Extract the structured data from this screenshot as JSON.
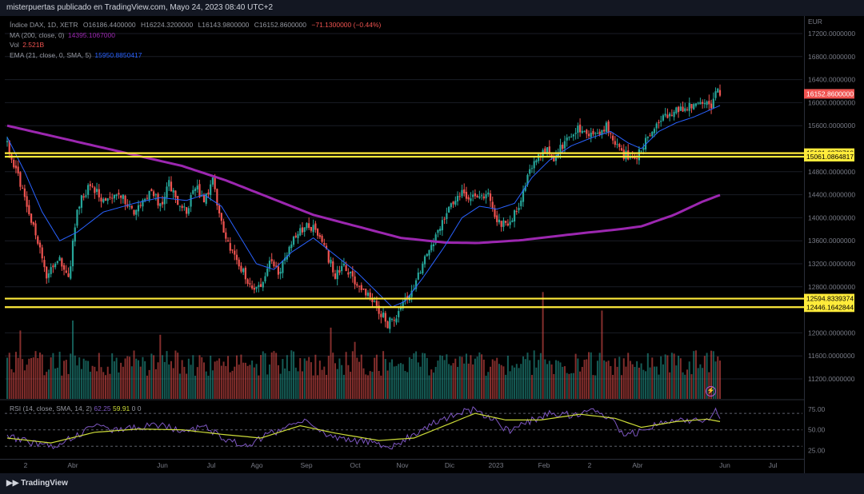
{
  "header": {
    "publisher_text": "misterpuertas publicado en TradingView.com, Mayo 24, 2023 08:40 UTC+2"
  },
  "legend": {
    "symbol": "Índice DAX, 1D, XETR",
    "open": "O16186.4400000",
    "high": "H16224.3200000",
    "low": "L16143.9800000",
    "close": "C16152.8600000",
    "change": "−71.1300000 (−0.44%)",
    "ma_label": "MA (200, close, 0)",
    "ma_value": "14395.1067000",
    "vol_label": "Vol",
    "vol_value": "2.521B",
    "ema_label": "EMA (21, close, 0, SMA, 5)",
    "ema_value": "15950.8850417"
  },
  "rsi_legend": {
    "label": "RSI (14, close, SMA, 14, 2)",
    "v1": "62.25",
    "v2": "59.91",
    "v3": "0",
    "v4": "0"
  },
  "footer": {
    "logo_text": "TradingView"
  },
  "colors": {
    "up": "#26a69a",
    "down": "#ef5350",
    "ma200": "#9c27b0",
    "ema21": "#2962ff",
    "level": "#ffeb3b",
    "rsi": "#7e57c2",
    "rsi_ma": "#cddc39"
  },
  "chart_data": [
    {
      "type": "candlestick",
      "title": "Índice DAX, 1D, XETR",
      "currency": "EUR",
      "ylim": [
        10950,
        17350
      ],
      "price_ticks": [
        17200,
        16800,
        16400,
        16000,
        15600,
        14800,
        14400,
        14000,
        13600,
        13200,
        12800,
        12000,
        11600,
        11200
      ],
      "price_tick_labels": [
        "17200.0000000",
        "16800.0000000",
        "16400.0000000",
        "16000.0000000",
        "15600.0000000",
        "14800.0000000",
        "14400.0000000",
        "14000.0000000",
        "13600.0000000",
        "13200.0000000",
        "12800.0000000",
        "12000.0000000",
        "11600.0000000",
        "11200.0000000"
      ],
      "time_labels": [
        "2",
        "Abr",
        "Jun",
        "Jul",
        "Ago",
        "Sep",
        "Oct",
        "Nov",
        "Dic",
        "2023",
        "Feb",
        "2",
        "Abr",
        "Jun",
        "Jul"
      ],
      "last_price": "16152.8600000",
      "levels": [
        {
          "value": 15121.6378719,
          "label": "15121.6378719"
        },
        {
          "value": 15061.0864817,
          "label": "15061.0864817"
        },
        {
          "value": 12594.8339374,
          "label": "12594.8339374"
        },
        {
          "value": 12446.1642844,
          "label": "12446.1642844"
        }
      ],
      "close_anchors": [
        [
          0,
          15300
        ],
        [
          10,
          14100
        ],
        [
          18,
          13000
        ],
        [
          24,
          13300
        ],
        [
          28,
          12900
        ],
        [
          32,
          14200
        ],
        [
          38,
          14600
        ],
        [
          44,
          14300
        ],
        [
          52,
          14400
        ],
        [
          58,
          14100
        ],
        [
          66,
          14500
        ],
        [
          70,
          14200
        ],
        [
          74,
          14600
        ],
        [
          78,
          14250
        ],
        [
          82,
          14100
        ],
        [
          86,
          14550
        ],
        [
          90,
          14300
        ],
        [
          94,
          14650
        ],
        [
          98,
          13900
        ],
        [
          102,
          13500
        ],
        [
          106,
          13200
        ],
        [
          110,
          12900
        ],
        [
          116,
          12750
        ],
        [
          120,
          13300
        ],
        [
          124,
          13000
        ],
        [
          128,
          13400
        ],
        [
          132,
          13700
        ],
        [
          138,
          13900
        ],
        [
          142,
          13700
        ],
        [
          146,
          13400
        ],
        [
          150,
          13000
        ],
        [
          154,
          13200
        ],
        [
          158,
          12950
        ],
        [
          162,
          12800
        ],
        [
          166,
          12600
        ],
        [
          170,
          12400
        ],
        [
          174,
          12150
        ],
        [
          180,
          12400
        ],
        [
          186,
          12800
        ],
        [
          190,
          13200
        ],
        [
          196,
          13700
        ],
        [
          202,
          14200
        ],
        [
          208,
          14450
        ],
        [
          214,
          14300
        ],
        [
          220,
          14400
        ],
        [
          224,
          13900
        ],
        [
          230,
          13950
        ],
        [
          234,
          14250
        ],
        [
          238,
          14750
        ],
        [
          242,
          15050
        ],
        [
          246,
          15200
        ],
        [
          250,
          15050
        ],
        [
          254,
          15250
        ],
        [
          258,
          15450
        ],
        [
          262,
          15550
        ],
        [
          266,
          15400
        ],
        [
          270,
          15500
        ],
        [
          274,
          15600
        ],
        [
          278,
          15300
        ],
        [
          282,
          15100
        ],
        [
          286,
          15050
        ],
        [
          290,
          15150
        ],
        [
          294,
          15500
        ],
        [
          298,
          15700
        ],
        [
          302,
          15800
        ],
        [
          306,
          15850
        ],
        [
          310,
          15950
        ],
        [
          314,
          15900
        ],
        [
          318,
          16000
        ],
        [
          322,
          15950
        ],
        [
          324,
          16250
        ],
        [
          326,
          16150
        ]
      ],
      "ma200_anchors": [
        [
          0,
          15600
        ],
        [
          40,
          15250
        ],
        [
          80,
          14900
        ],
        [
          100,
          14650
        ],
        [
          120,
          14350
        ],
        [
          140,
          14050
        ],
        [
          160,
          13850
        ],
        [
          180,
          13650
        ],
        [
          200,
          13570
        ],
        [
          215,
          13560
        ],
        [
          235,
          13610
        ],
        [
          260,
          13720
        ],
        [
          280,
          13800
        ],
        [
          290,
          13850
        ],
        [
          305,
          14050
        ],
        [
          318,
          14280
        ],
        [
          326,
          14395
        ]
      ],
      "ema21_anchors": [
        [
          0,
          15400
        ],
        [
          8,
          14800
        ],
        [
          16,
          14100
        ],
        [
          24,
          13600
        ],
        [
          32,
          13750
        ],
        [
          44,
          14100
        ],
        [
          58,
          14250
        ],
        [
          70,
          14350
        ],
        [
          82,
          14300
        ],
        [
          90,
          14400
        ],
        [
          98,
          14200
        ],
        [
          106,
          13700
        ],
        [
          114,
          13200
        ],
        [
          122,
          13100
        ],
        [
          130,
          13400
        ],
        [
          140,
          13650
        ],
        [
          150,
          13350
        ],
        [
          160,
          13050
        ],
        [
          168,
          12750
        ],
        [
          176,
          12450
        ],
        [
          182,
          12550
        ],
        [
          190,
          12950
        ],
        [
          200,
          13500
        ],
        [
          208,
          14000
        ],
        [
          216,
          14200
        ],
        [
          224,
          14150
        ],
        [
          232,
          14250
        ],
        [
          240,
          14700
        ],
        [
          248,
          15000
        ],
        [
          258,
          15250
        ],
        [
          268,
          15400
        ],
        [
          276,
          15500
        ],
        [
          284,
          15300
        ],
        [
          290,
          15200
        ],
        [
          298,
          15500
        ],
        [
          306,
          15650
        ],
        [
          314,
          15750
        ],
        [
          320,
          15850
        ],
        [
          326,
          15950
        ]
      ],
      "volume_spikes": [
        [
          245,
          0.75
        ],
        [
          272,
          0.62
        ],
        [
          159,
          0.4
        ],
        [
          148,
          0.5
        ],
        [
          6,
          0.48
        ],
        [
          70,
          0.45
        ],
        [
          30,
          0.55
        ]
      ]
    },
    {
      "type": "line",
      "title": "RSI (14, close, SMA, 14, 2)",
      "ylim": [
        20,
        85
      ],
      "level_lines": [
        70,
        50,
        30
      ],
      "tick_labels": [
        "75.00",
        "50.00",
        "25.00"
      ],
      "tick_values": [
        75,
        50,
        25
      ],
      "rsi_value": 62.25,
      "rsi_ma_value": 59.91,
      "rsi_anchors": [
        [
          0,
          42
        ],
        [
          10,
          35
        ],
        [
          20,
          30
        ],
        [
          30,
          40
        ],
        [
          40,
          55
        ],
        [
          50,
          50
        ],
        [
          60,
          52
        ],
        [
          70,
          57
        ],
        [
          80,
          47
        ],
        [
          90,
          55
        ],
        [
          100,
          38
        ],
        [
          110,
          32
        ],
        [
          120,
          45
        ],
        [
          128,
          52
        ],
        [
          136,
          60
        ],
        [
          146,
          45
        ],
        [
          156,
          38
        ],
        [
          166,
          35
        ],
        [
          176,
          30
        ],
        [
          186,
          45
        ],
        [
          196,
          60
        ],
        [
          206,
          70
        ],
        [
          214,
          75
        ],
        [
          224,
          60
        ],
        [
          230,
          46
        ],
        [
          238,
          60
        ],
        [
          248,
          70
        ],
        [
          258,
          68
        ],
        [
          268,
          72
        ],
        [
          276,
          66
        ],
        [
          282,
          43
        ],
        [
          290,
          48
        ],
        [
          298,
          58
        ],
        [
          306,
          65
        ],
        [
          314,
          60
        ],
        [
          320,
          64
        ],
        [
          324,
          72
        ],
        [
          326,
          62
        ]
      ],
      "rsi_ma_anchors": [
        [
          0,
          40
        ],
        [
          20,
          34
        ],
        [
          40,
          47
        ],
        [
          60,
          51
        ],
        [
          80,
          50
        ],
        [
          100,
          44
        ],
        [
          116,
          40
        ],
        [
          134,
          55
        ],
        [
          150,
          46
        ],
        [
          170,
          37
        ],
        [
          186,
          40
        ],
        [
          200,
          55
        ],
        [
          214,
          70
        ],
        [
          228,
          62
        ],
        [
          244,
          62
        ],
        [
          262,
          69
        ],
        [
          278,
          64
        ],
        [
          290,
          53
        ],
        [
          306,
          60
        ],
        [
          320,
          63
        ],
        [
          326,
          60
        ]
      ]
    }
  ]
}
